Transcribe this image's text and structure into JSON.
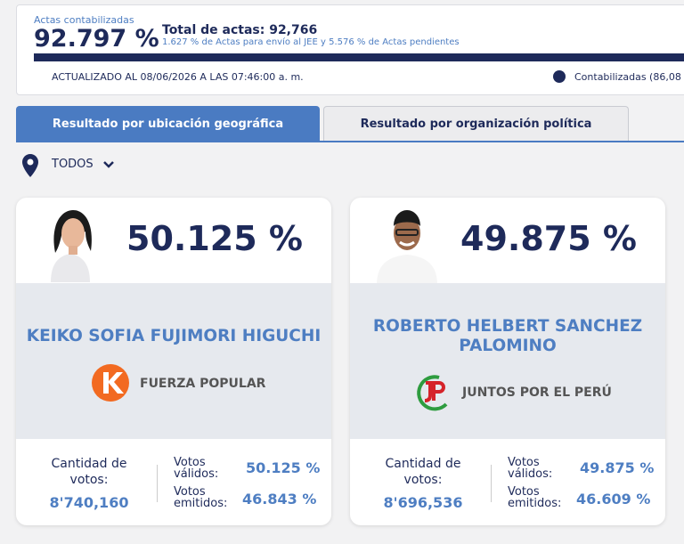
{
  "header": {
    "actas_label": "Actas contabilizadas",
    "actas_percent": "92.797 %",
    "total_actas": "Total de actas: 92,766",
    "detail": "1.627 % de Actas para envío al JEE y 5.576 % de Actas pendientes",
    "updated": "ACTUALIZADO AL 08/06/2026 A LAS 07:46:00 a. m.",
    "legend": "Contabilizadas (86,08"
  },
  "tabs": [
    "Resultado por ubicación geográfica",
    "Resultado por organización política"
  ],
  "filter": "TODOS",
  "candidates": [
    {
      "percent": "50.125 %",
      "name": "KEIKO SOFIA FUJIMORI HIGUCHI",
      "party": "FUERZA POPULAR",
      "votes_label": "Cantidad de votos:",
      "votes": "8'740,160",
      "valid_label": "Votos válidos:",
      "valid": "50.125 %",
      "emitted_label": "Votos emitidos:",
      "emitted": "46.843 %"
    },
    {
      "percent": "49.875 %",
      "name": "ROBERTO HELBERT SANCHEZ PALOMINO",
      "party": "JUNTOS POR EL PERÚ",
      "votes_label": "Cantidad de votos:",
      "votes": "8'696,536",
      "valid_label": "Votos válidos:",
      "valid": "49.875 %",
      "emitted_label": "Votos emitidos:",
      "emitted": "46.609 %"
    }
  ]
}
